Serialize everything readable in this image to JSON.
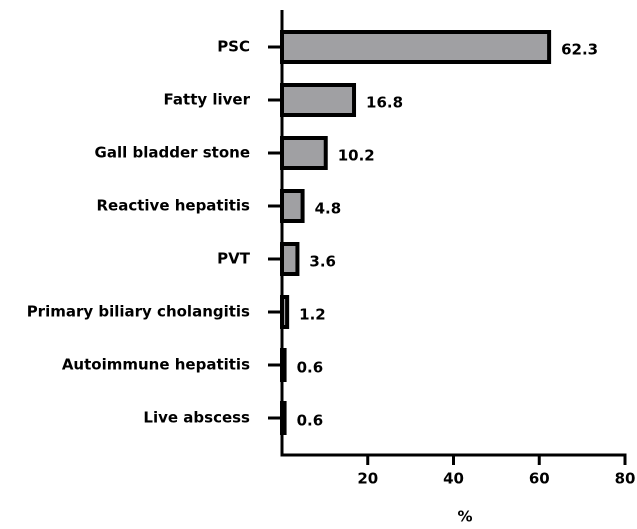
{
  "chart_data": {
    "type": "barh",
    "x_label": "%",
    "categories": [
      "PSC",
      "Fatty liver",
      "Gall bladder stone",
      "Reactive hepatitis",
      "PVT",
      "Primary biliary cholangitis",
      "Autoimmune hepatitis",
      "Live abscess"
    ],
    "values": [
      62.3,
      16.8,
      10.2,
      4.8,
      3.6,
      1.2,
      0.6,
      0.6
    ],
    "color": "#a0a0a3",
    "xlim": [
      0,
      80
    ],
    "xticks": [
      20,
      40,
      60,
      80
    ],
    "grid": false
  }
}
